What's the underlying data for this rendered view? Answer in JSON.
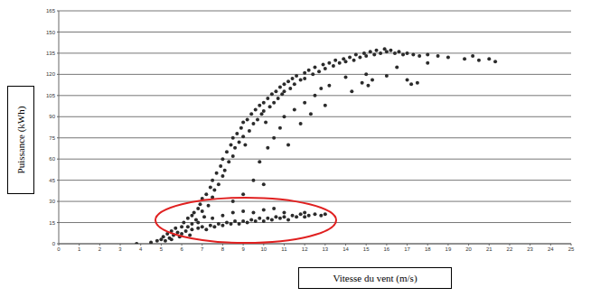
{
  "chart_data": {
    "type": "scatter",
    "x_label": "Vitesse du vent (m/s)",
    "y_label": "Puissance (kWh)",
    "color": "#2b2b2b",
    "marker": "circle",
    "grid": true,
    "xlim": [
      0,
      25
    ],
    "ylim": [
      0,
      165
    ],
    "xticks": [
      0,
      1,
      2,
      3,
      4,
      5,
      6,
      7,
      8,
      9,
      10,
      11,
      12,
      13,
      14,
      15,
      16,
      17,
      18,
      19,
      20,
      21,
      22,
      23,
      24,
      25
    ],
    "yticks": [
      0,
      15,
      30,
      45,
      60,
      75,
      90,
      105,
      120,
      135,
      150,
      165
    ],
    "x": [
      3.8,
      4.5,
      4.8,
      5,
      5.1,
      5.2,
      5.3,
      5.4,
      5.5,
      5.5,
      5.6,
      5.7,
      5.8,
      5.9,
      6,
      6,
      6.1,
      6.2,
      6.3,
      6.3,
      6.4,
      6.5,
      6.5,
      6.6,
      6.7,
      6.8,
      6.9,
      7,
      7,
      7.1,
      7.2,
      7.3,
      7.4,
      7.5,
      7.5,
      7.6,
      7.7,
      7.8,
      7.9,
      8,
      8,
      8.1,
      8.2,
      8.3,
      8.4,
      8.5,
      8.5,
      8.6,
      8.7,
      8.8,
      8.9,
      9,
      9,
      9.1,
      9.2,
      9.3,
      9.4,
      9.5,
      9.6,
      9.7,
      9.8,
      9.9,
      10,
      10,
      10.1,
      10.2,
      10.3,
      10.4,
      10.5,
      10.6,
      10.7,
      10.8,
      10.9,
      11,
      11,
      11.2,
      11.3,
      11.4,
      11.5,
      11.6,
      11.8,
      12,
      12,
      12.2,
      12.4,
      12.5,
      12.7,
      12.9,
      13,
      13.2,
      13.4,
      13.5,
      13.7,
      13.9,
      14,
      14.2,
      14.4,
      14.5,
      14.7,
      14.9,
      15,
      15.2,
      15.4,
      15.5,
      15.7,
      15.9,
      16,
      16.2,
      16.4,
      16.6,
      16.8,
      17,
      17.3,
      17.6,
      18,
      18.5,
      19,
      19.8,
      20.2,
      20.5,
      21,
      21.3,
      8.5,
      9,
      9.5,
      9.8,
      10,
      10.2,
      10.5,
      10.8,
      11,
      11.2,
      11.5,
      11.8,
      12,
      12.3,
      12.5,
      12.8,
      13,
      13.2,
      14,
      14.3,
      14.8,
      15,
      15.1,
      15.3,
      16,
      16.5,
      17,
      17.2,
      17.5,
      18,
      6.5,
      6.8,
      7,
      7.2,
      7.4,
      7.6,
      7.8,
      8,
      8.2,
      8.4,
      8.6,
      8.8,
      9,
      9.2,
      9.4,
      9.6,
      9.8,
      10,
      10.2,
      10.4,
      10.6,
      10.8,
      11,
      11.2,
      11.4,
      11.6,
      11.8,
      12,
      12.2,
      12.5,
      12.8,
      13,
      8,
      8.5,
      9,
      9.5,
      10,
      10.5,
      7.5,
      11,
      12,
      6.8
    ],
    "values": [
      0,
      1,
      2,
      3,
      5,
      2,
      7,
      4,
      9,
      3,
      6,
      11,
      8,
      5,
      12,
      7,
      15,
      9,
      18,
      12,
      6,
      20,
      14,
      22,
      17,
      25,
      28,
      23,
      32,
      19,
      35,
      27,
      40,
      33,
      45,
      38,
      50,
      42,
      55,
      48,
      60,
      52,
      65,
      58,
      70,
      62,
      75,
      68,
      78,
      72,
      82,
      76,
      86,
      70,
      88,
      80,
      92,
      85,
      95,
      88,
      98,
      92,
      100,
      94,
      86,
      103,
      97,
      106,
      100,
      108,
      103,
      111,
      106,
      113,
      108,
      115,
      110,
      117,
      113,
      119,
      116,
      121,
      117,
      123,
      120,
      125,
      122,
      127,
      124,
      128,
      126,
      130,
      128,
      131,
      129,
      132,
      130,
      134,
      132,
      135,
      133,
      136,
      134,
      137,
      135,
      138,
      136,
      137,
      135,
      136,
      134,
      135,
      134,
      133,
      134,
      133,
      132,
      131,
      133,
      130,
      131,
      129,
      30,
      35,
      45,
      58,
      42,
      68,
      75,
      82,
      90,
      70,
      95,
      85,
      100,
      92,
      105,
      110,
      98,
      112,
      118,
      108,
      114,
      120,
      112,
      116,
      119,
      125,
      116,
      113,
      114,
      128,
      10,
      11,
      12,
      10,
      13,
      12,
      14,
      13,
      15,
      14,
      16,
      14,
      16,
      15,
      17,
      16,
      18,
      16,
      18,
      17,
      19,
      18,
      19,
      17,
      20,
      19,
      21,
      19,
      20,
      21,
      20,
      21,
      20,
      22,
      23,
      22,
      24,
      25,
      18,
      22,
      22,
      15
    ]
  }
}
